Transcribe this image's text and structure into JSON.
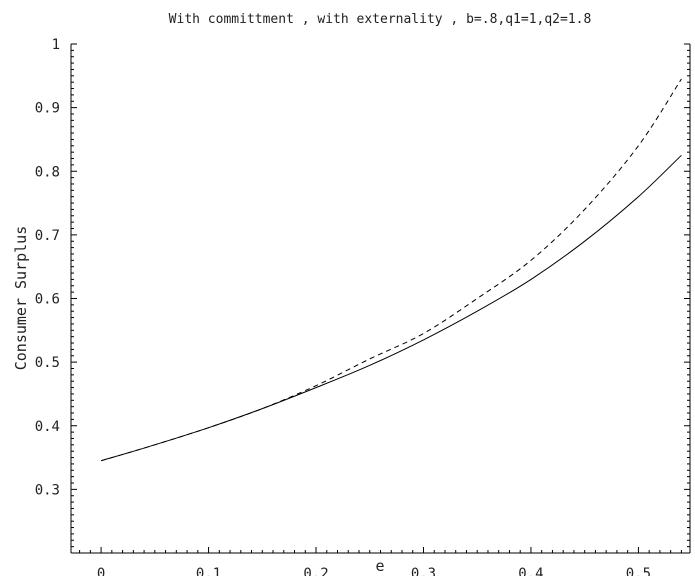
{
  "chart_data": {
    "type": "line",
    "title": "With committment , with externality , b=.8,q1=1,q2=1.8",
    "xlabel": "e",
    "ylabel": "Consumer Surplus",
    "xlim": [
      -0.028,
      0.548
    ],
    "ylim": [
      0.2,
      1.0
    ],
    "grid": false,
    "x_ticks": [
      0,
      0.1,
      0.2,
      0.3,
      0.4,
      0.5
    ],
    "x_tick_labels": [
      "0",
      "0.1",
      "0.2",
      "0.3",
      "0.4",
      "0.5"
    ],
    "y_ticks": [
      0.3,
      0.4,
      0.5,
      0.6,
      0.7,
      0.8,
      0.9,
      1.0
    ],
    "y_tick_labels": [
      "0.3",
      "0.4",
      "0.5",
      "0.6",
      "0.7",
      "0.8",
      "0.9",
      "1"
    ],
    "series": [
      {
        "style": "solid",
        "color": "#000000",
        "x": [
          0,
          0.05,
          0.1,
          0.15,
          0.2,
          0.25,
          0.3,
          0.35,
          0.4,
          0.45,
          0.5,
          0.54
        ],
        "y": [
          0.345,
          0.37,
          0.397,
          0.427,
          0.46,
          0.495,
          0.535,
          0.58,
          0.63,
          0.69,
          0.76,
          0.825
        ]
      },
      {
        "style": "dashed",
        "color": "#000000",
        "x": [
          0,
          0.05,
          0.1,
          0.15,
          0.2,
          0.25,
          0.3,
          0.35,
          0.4,
          0.45,
          0.5,
          0.54
        ],
        "y": [
          0.345,
          0.37,
          0.397,
          0.427,
          0.463,
          0.505,
          0.545,
          0.6,
          0.66,
          0.74,
          0.84,
          0.945
        ]
      }
    ]
  }
}
